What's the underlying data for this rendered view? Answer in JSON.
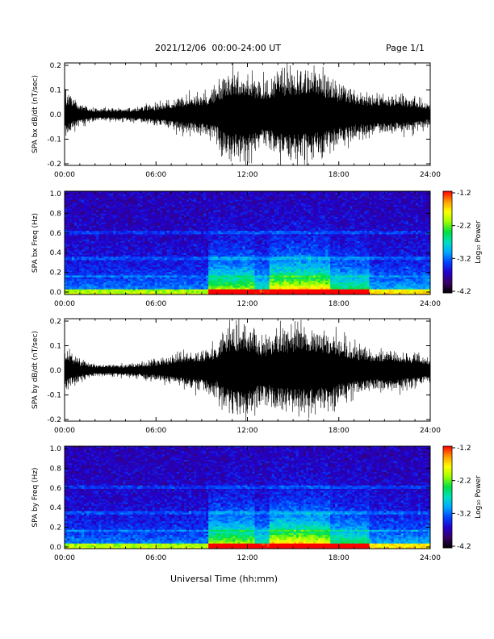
{
  "header": {
    "title": "2021/12/06  00:00-24:00 UT",
    "page": "Page 1/1"
  },
  "xlabel": "Universal Time (hh:mm)",
  "colors": {
    "waveform": "#000000",
    "colormap": [
      "#000000",
      "#3a0066",
      "#2200cc",
      "#0044ff",
      "#00aaff",
      "#00e0c0",
      "#00e040",
      "#a0ff00",
      "#ffff00",
      "#ff9900",
      "#ff0000"
    ]
  },
  "chart_data": [
    {
      "type": "line",
      "ylabel": "SPA bx dB/dt (nT/sec)",
      "x_ticks": [
        "00:00",
        "06:00",
        "12:00",
        "18:00",
        "24:00"
      ],
      "xlim_hours": [
        0,
        24
      ],
      "y_ticks": [
        "0.2",
        "0.1",
        "0.0",
        "-0.1",
        "-0.2"
      ],
      "ylim": [
        -0.2,
        0.2
      ],
      "envelope": {
        "hours": [
          0,
          0.5,
          1,
          2,
          3,
          4,
          5,
          6,
          7,
          8,
          9,
          10,
          10.5,
          11,
          12,
          13,
          14,
          15,
          16,
          17,
          18,
          19,
          20,
          21,
          22,
          23,
          24
        ],
        "amplitude": [
          0.12,
          0.08,
          0.05,
          0.03,
          0.03,
          0.03,
          0.04,
          0.05,
          0.07,
          0.09,
          0.1,
          0.13,
          0.2,
          0.22,
          0.22,
          0.16,
          0.2,
          0.22,
          0.22,
          0.2,
          0.15,
          0.12,
          0.1,
          0.1,
          0.09,
          0.08,
          0.05
        ]
      }
    },
    {
      "type": "heatmap",
      "ylabel": "SPA bx Freq (Hz)",
      "x_ticks": [
        "00:00",
        "06:00",
        "12:00",
        "18:00",
        "24:00"
      ],
      "xlim_hours": [
        0,
        24
      ],
      "y_ticks": [
        "1.0",
        "0.8",
        "0.6",
        "0.4",
        "0.2",
        "0.0"
      ],
      "ylim": [
        0,
        1.0
      ],
      "colorbar": {
        "label": "Log₁₀ Power",
        "ticks": [
          "-1.2",
          "-2.2",
          "-3.2",
          "-4.2"
        ],
        "range": [
          -4.2,
          -1.2
        ]
      }
    },
    {
      "type": "line",
      "ylabel": "SPA by dB/dt (nT/sec)",
      "x_ticks": [
        "00:00",
        "06:00",
        "12:00",
        "18:00",
        "24:00"
      ],
      "xlim_hours": [
        0,
        24
      ],
      "y_ticks": [
        "0.2",
        "0.1",
        "0.0",
        "-0.1",
        "-0.2"
      ],
      "ylim": [
        -0.2,
        0.2
      ],
      "envelope": {
        "hours": [
          0,
          0.5,
          1,
          2,
          3,
          4,
          5,
          6,
          7,
          8,
          9,
          10,
          10.5,
          11,
          12,
          13,
          14,
          15,
          16,
          17,
          18,
          19,
          20,
          21,
          22,
          23,
          24
        ],
        "amplitude": [
          0.1,
          0.08,
          0.05,
          0.03,
          0.03,
          0.03,
          0.04,
          0.05,
          0.07,
          0.09,
          0.1,
          0.12,
          0.2,
          0.22,
          0.22,
          0.16,
          0.19,
          0.21,
          0.22,
          0.2,
          0.16,
          0.12,
          0.1,
          0.1,
          0.1,
          0.08,
          0.06
        ]
      }
    },
    {
      "type": "heatmap",
      "ylabel": "SPA by Freq (Hz)",
      "x_ticks": [
        "00:00",
        "06:00",
        "12:00",
        "18:00",
        "24:00"
      ],
      "xlim_hours": [
        0,
        24
      ],
      "y_ticks": [
        "1.0",
        "0.8",
        "0.6",
        "0.4",
        "0.2",
        "0.0"
      ],
      "ylim": [
        0,
        1.0
      ],
      "colorbar": {
        "label": "Log₁₀ Power",
        "ticks": [
          "-1.2",
          "-2.2",
          "-3.2",
          "-4.2"
        ],
        "range": [
          -4.2,
          -1.2
        ]
      }
    }
  ]
}
